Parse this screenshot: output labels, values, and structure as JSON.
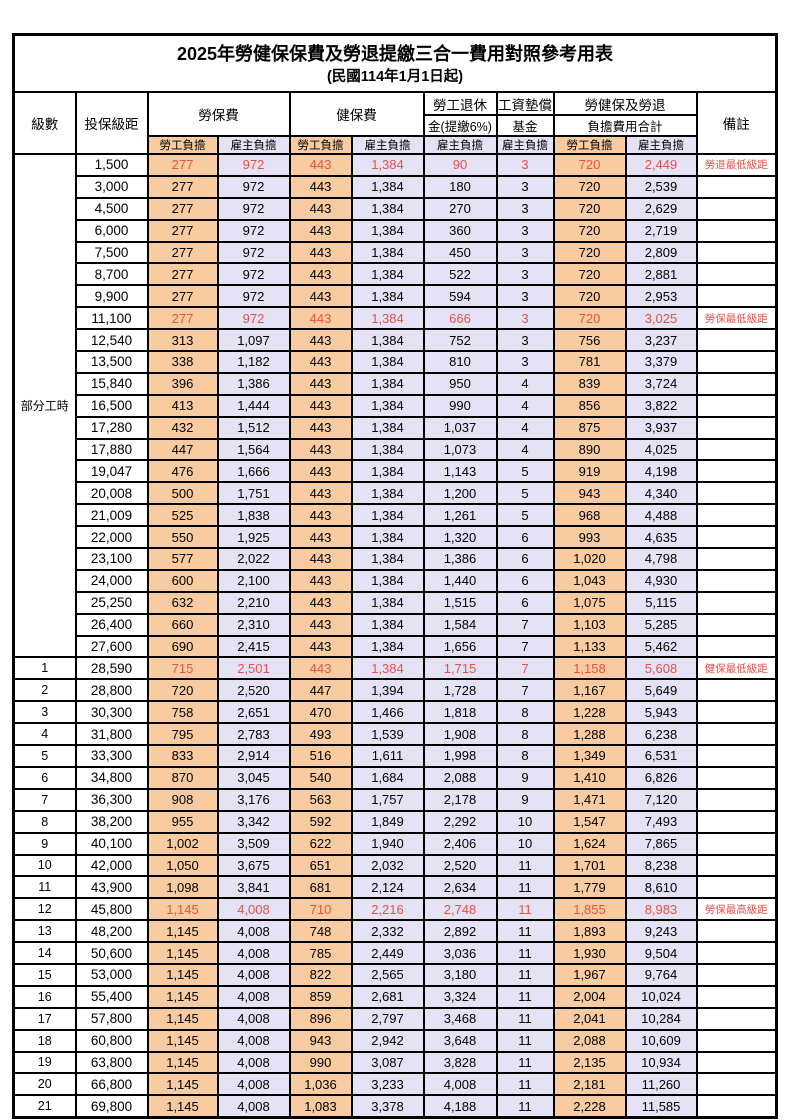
{
  "title": "2025年勞健保保費及勞退提繳三合一費用對照參考用表",
  "subtitle": "(民國114年1月1日起)",
  "columns": {
    "level": "級數",
    "bracket": "投保級距",
    "labor_fee": "勞保費",
    "health_fee": "健保費",
    "pension_top": "勞工退休",
    "pension_bottom": "金(提繳6%)",
    "fund_top": "工資墊償",
    "fund_bottom": "基金",
    "total_top": "勞健保及勞退",
    "total_bottom": "負擔費用合計",
    "remark": "備註",
    "employee": "勞工負擔",
    "employer": "雇主負擔"
  },
  "part_time": {
    "label": "部分工時",
    "span": 23
  },
  "colors": {
    "employee_bg": "#f8cba0",
    "employer_bg": "#e4e2f4",
    "highlight_text": "#e8514a",
    "border": "#000000"
  },
  "rows": [
    {
      "level": null,
      "bracket": "1,500",
      "values": [
        "277",
        "972",
        "443",
        "1,384",
        "90",
        "3",
        "720",
        "2,449"
      ],
      "remark": "勞退最低級距",
      "red": true
    },
    {
      "level": null,
      "bracket": "3,000",
      "values": [
        "277",
        "972",
        "443",
        "1,384",
        "180",
        "3",
        "720",
        "2,539"
      ],
      "remark": "",
      "red": false
    },
    {
      "level": null,
      "bracket": "4,500",
      "values": [
        "277",
        "972",
        "443",
        "1,384",
        "270",
        "3",
        "720",
        "2,629"
      ],
      "remark": "",
      "red": false
    },
    {
      "level": null,
      "bracket": "6,000",
      "values": [
        "277",
        "972",
        "443",
        "1,384",
        "360",
        "3",
        "720",
        "2,719"
      ],
      "remark": "",
      "red": false
    },
    {
      "level": null,
      "bracket": "7,500",
      "values": [
        "277",
        "972",
        "443",
        "1,384",
        "450",
        "3",
        "720",
        "2,809"
      ],
      "remark": "",
      "red": false
    },
    {
      "level": null,
      "bracket": "8,700",
      "values": [
        "277",
        "972",
        "443",
        "1,384",
        "522",
        "3",
        "720",
        "2,881"
      ],
      "remark": "",
      "red": false
    },
    {
      "level": null,
      "bracket": "9,900",
      "values": [
        "277",
        "972",
        "443",
        "1,384",
        "594",
        "3",
        "720",
        "2,953"
      ],
      "remark": "",
      "red": false
    },
    {
      "level": null,
      "bracket": "11,100",
      "values": [
        "277",
        "972",
        "443",
        "1,384",
        "666",
        "3",
        "720",
        "3,025"
      ],
      "remark": "勞保最低級距",
      "red": true
    },
    {
      "level": null,
      "bracket": "12,540",
      "values": [
        "313",
        "1,097",
        "443",
        "1,384",
        "752",
        "3",
        "756",
        "3,237"
      ],
      "remark": "",
      "red": false
    },
    {
      "level": null,
      "bracket": "13,500",
      "values": [
        "338",
        "1,182",
        "443",
        "1,384",
        "810",
        "3",
        "781",
        "3,379"
      ],
      "remark": "",
      "red": false
    },
    {
      "level": null,
      "bracket": "15,840",
      "values": [
        "396",
        "1,386",
        "443",
        "1,384",
        "950",
        "4",
        "839",
        "3,724"
      ],
      "remark": "",
      "red": false
    },
    {
      "level": null,
      "bracket": "16,500",
      "values": [
        "413",
        "1,444",
        "443",
        "1,384",
        "990",
        "4",
        "856",
        "3,822"
      ],
      "remark": "",
      "red": false
    },
    {
      "level": null,
      "bracket": "17,280",
      "values": [
        "432",
        "1,512",
        "443",
        "1,384",
        "1,037",
        "4",
        "875",
        "3,937"
      ],
      "remark": "",
      "red": false
    },
    {
      "level": null,
      "bracket": "17,880",
      "values": [
        "447",
        "1,564",
        "443",
        "1,384",
        "1,073",
        "4",
        "890",
        "4,025"
      ],
      "remark": "",
      "red": false
    },
    {
      "level": null,
      "bracket": "19,047",
      "values": [
        "476",
        "1,666",
        "443",
        "1,384",
        "1,143",
        "5",
        "919",
        "4,198"
      ],
      "remark": "",
      "red": false
    },
    {
      "level": null,
      "bracket": "20,008",
      "values": [
        "500",
        "1,751",
        "443",
        "1,384",
        "1,200",
        "5",
        "943",
        "4,340"
      ],
      "remark": "",
      "red": false
    },
    {
      "level": null,
      "bracket": "21,009",
      "values": [
        "525",
        "1,838",
        "443",
        "1,384",
        "1,261",
        "5",
        "968",
        "4,488"
      ],
      "remark": "",
      "red": false
    },
    {
      "level": null,
      "bracket": "22,000",
      "values": [
        "550",
        "1,925",
        "443",
        "1,384",
        "1,320",
        "6",
        "993",
        "4,635"
      ],
      "remark": "",
      "red": false
    },
    {
      "level": null,
      "bracket": "23,100",
      "values": [
        "577",
        "2,022",
        "443",
        "1,384",
        "1,386",
        "6",
        "1,020",
        "4,798"
      ],
      "remark": "",
      "red": false
    },
    {
      "level": null,
      "bracket": "24,000",
      "values": [
        "600",
        "2,100",
        "443",
        "1,384",
        "1,440",
        "6",
        "1,043",
        "4,930"
      ],
      "remark": "",
      "red": false
    },
    {
      "level": null,
      "bracket": "25,250",
      "values": [
        "632",
        "2,210",
        "443",
        "1,384",
        "1,515",
        "6",
        "1,075",
        "5,115"
      ],
      "remark": "",
      "red": false
    },
    {
      "level": null,
      "bracket": "26,400",
      "values": [
        "660",
        "2,310",
        "443",
        "1,384",
        "1,584",
        "7",
        "1,103",
        "5,285"
      ],
      "remark": "",
      "red": false
    },
    {
      "level": null,
      "bracket": "27,600",
      "values": [
        "690",
        "2,415",
        "443",
        "1,384",
        "1,656",
        "7",
        "1,133",
        "5,462"
      ],
      "remark": "",
      "red": false
    },
    {
      "level": "1",
      "bracket": "28,590",
      "values": [
        "715",
        "2,501",
        "443",
        "1,384",
        "1,715",
        "7",
        "1,158",
        "5,608"
      ],
      "remark": "健保最低級距",
      "red": true
    },
    {
      "level": "2",
      "bracket": "28,800",
      "values": [
        "720",
        "2,520",
        "447",
        "1,394",
        "1,728",
        "7",
        "1,167",
        "5,649"
      ],
      "remark": "",
      "red": false
    },
    {
      "level": "3",
      "bracket": "30,300",
      "values": [
        "758",
        "2,651",
        "470",
        "1,466",
        "1,818",
        "8",
        "1,228",
        "5,943"
      ],
      "remark": "",
      "red": false
    },
    {
      "level": "4",
      "bracket": "31,800",
      "values": [
        "795",
        "2,783",
        "493",
        "1,539",
        "1,908",
        "8",
        "1,288",
        "6,238"
      ],
      "remark": "",
      "red": false
    },
    {
      "level": "5",
      "bracket": "33,300",
      "values": [
        "833",
        "2,914",
        "516",
        "1,611",
        "1,998",
        "8",
        "1,349",
        "6,531"
      ],
      "remark": "",
      "red": false
    },
    {
      "level": "6",
      "bracket": "34,800",
      "values": [
        "870",
        "3,045",
        "540",
        "1,684",
        "2,088",
        "9",
        "1,410",
        "6,826"
      ],
      "remark": "",
      "red": false
    },
    {
      "level": "7",
      "bracket": "36,300",
      "values": [
        "908",
        "3,176",
        "563",
        "1,757",
        "2,178",
        "9",
        "1,471",
        "7,120"
      ],
      "remark": "",
      "red": false
    },
    {
      "level": "8",
      "bracket": "38,200",
      "values": [
        "955",
        "3,342",
        "592",
        "1,849",
        "2,292",
        "10",
        "1,547",
        "7,493"
      ],
      "remark": "",
      "red": false
    },
    {
      "level": "9",
      "bracket": "40,100",
      "values": [
        "1,002",
        "3,509",
        "622",
        "1,940",
        "2,406",
        "10",
        "1,624",
        "7,865"
      ],
      "remark": "",
      "red": false
    },
    {
      "level": "10",
      "bracket": "42,000",
      "values": [
        "1,050",
        "3,675",
        "651",
        "2,032",
        "2,520",
        "11",
        "1,701",
        "8,238"
      ],
      "remark": "",
      "red": false
    },
    {
      "level": "11",
      "bracket": "43,900",
      "values": [
        "1,098",
        "3,841",
        "681",
        "2,124",
        "2,634",
        "11",
        "1,779",
        "8,610"
      ],
      "remark": "",
      "red": false
    },
    {
      "level": "12",
      "bracket": "45,800",
      "values": [
        "1,145",
        "4,008",
        "710",
        "2,216",
        "2,748",
        "11",
        "1,855",
        "8,983"
      ],
      "remark": "勞保最高級距",
      "red": true
    },
    {
      "level": "13",
      "bracket": "48,200",
      "values": [
        "1,145",
        "4,008",
        "748",
        "2,332",
        "2,892",
        "11",
        "1,893",
        "9,243"
      ],
      "remark": "",
      "red": false
    },
    {
      "level": "14",
      "bracket": "50,600",
      "values": [
        "1,145",
        "4,008",
        "785",
        "2,449",
        "3,036",
        "11",
        "1,930",
        "9,504"
      ],
      "remark": "",
      "red": false
    },
    {
      "level": "15",
      "bracket": "53,000",
      "values": [
        "1,145",
        "4,008",
        "822",
        "2,565",
        "3,180",
        "11",
        "1,967",
        "9,764"
      ],
      "remark": "",
      "red": false
    },
    {
      "level": "16",
      "bracket": "55,400",
      "values": [
        "1,145",
        "4,008",
        "859",
        "2,681",
        "3,324",
        "11",
        "2,004",
        "10,024"
      ],
      "remark": "",
      "red": false
    },
    {
      "level": "17",
      "bracket": "57,800",
      "values": [
        "1,145",
        "4,008",
        "896",
        "2,797",
        "3,468",
        "11",
        "2,041",
        "10,284"
      ],
      "remark": "",
      "red": false
    },
    {
      "level": "18",
      "bracket": "60,800",
      "values": [
        "1,145",
        "4,008",
        "943",
        "2,942",
        "3,648",
        "11",
        "2,088",
        "10,609"
      ],
      "remark": "",
      "red": false
    },
    {
      "level": "19",
      "bracket": "63,800",
      "values": [
        "1,145",
        "4,008",
        "990",
        "3,087",
        "3,828",
        "11",
        "2,135",
        "10,934"
      ],
      "remark": "",
      "red": false
    },
    {
      "level": "20",
      "bracket": "66,800",
      "values": [
        "1,145",
        "4,008",
        "1,036",
        "3,233",
        "4,008",
        "11",
        "2,181",
        "11,260"
      ],
      "remark": "",
      "red": false
    },
    {
      "level": "21",
      "bracket": "69,800",
      "values": [
        "1,145",
        "4,008",
        "1,083",
        "3,378",
        "4,188",
        "11",
        "2,228",
        "11,585"
      ],
      "remark": "",
      "red": false
    }
  ]
}
